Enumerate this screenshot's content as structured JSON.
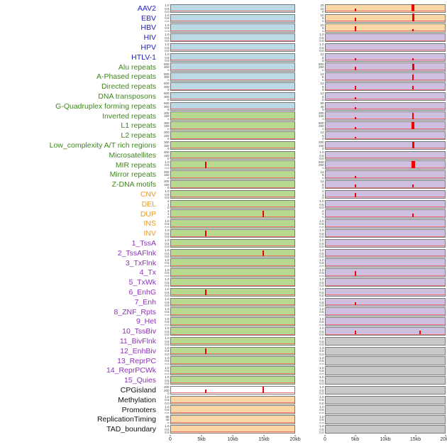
{
  "chart_data": {
    "type": "line",
    "title": "",
    "description": "Two-column genomic feature track figure: 44 feature tracks (rows) around two loci; red signal spikes near 5kb and 15kb on a 0-20kb axis",
    "x_axis": {
      "ticks": [
        "0",
        "5kb",
        "10kb",
        "15kb",
        "20kb"
      ],
      "fractions": [
        0,
        0.25,
        0.5,
        0.75,
        1
      ],
      "range_kb": [
        0,
        20
      ]
    },
    "group_colors": {
      "virus": "#2020cc",
      "repeat": "#3f871b",
      "sv": "#ee9b1f",
      "chromhmm": "#9030bd",
      "other": "#111111"
    },
    "panel_colors": {
      "blue": "#bcd9e6",
      "green": "#b8da90",
      "orange": "#fcd7a6",
      "purple": "#cfc0e2",
      "gray": "#c9c9c9",
      "white": "#ffffff"
    },
    "signal_color": "#f40000",
    "baseline_color": "#e87272",
    "tick_sets": {
      "u": [
        "1.0",
        "0.5",
        "0.0"
      ],
      "c2": [
        "2",
        "1",
        "0"
      ],
      "c3": [
        "300",
        "150",
        "0"
      ],
      "c6": [
        "600",
        "300",
        "0"
      ],
      "c12": [
        "12",
        "6",
        "0"
      ],
      "c80": [
        "80",
        "40",
        "0"
      ],
      "c500": [
        "500",
        "250",
        "0"
      ],
      "cpg": [
        "400",
        "200",
        "0"
      ],
      "v20": [
        "20",
        "10",
        "0"
      ],
      "v15": [
        "10",
        "5",
        "0"
      ]
    },
    "tracks": [
      {
        "label": "AAV2",
        "group": "virus",
        "lt": "u",
        "rt": "v20",
        "l": {
          "bg": "blue",
          "s": []
        },
        "r": {
          "bg": "orange",
          "s": [
            {
              "kb": 5.0,
              "h": 0.35
            },
            {
              "kb": 14.7,
              "h": 1.0,
              "w": 4
            }
          ]
        }
      },
      {
        "label": "EBV",
        "group": "virus",
        "lt": "u",
        "rt": "v15",
        "l": {
          "bg": "blue",
          "s": []
        },
        "r": {
          "bg": "orange",
          "s": [
            {
              "kb": 5.0,
              "h": 0.5
            },
            {
              "kb": 14.7,
              "h": 1.0,
              "w": 3
            }
          ]
        }
      },
      {
        "label": "HBV",
        "group": "virus",
        "lt": "u",
        "rt": "v15",
        "l": {
          "bg": "blue",
          "s": []
        },
        "r": {
          "bg": "orange",
          "s": [
            {
              "kb": 5.0,
              "h": 0.6
            },
            {
              "kb": 14.7,
              "h": 0.25
            }
          ]
        }
      },
      {
        "label": "HIV",
        "group": "virus",
        "lt": "u",
        "rt": "u",
        "l": {
          "bg": "blue",
          "s": []
        },
        "r": {
          "bg": "purple",
          "s": []
        }
      },
      {
        "label": "HPV",
        "group": "virus",
        "lt": "u",
        "rt": "u",
        "l": {
          "bg": "blue",
          "s": []
        },
        "r": {
          "bg": "purple",
          "s": []
        }
      },
      {
        "label": "HTLV-1",
        "group": "virus",
        "lt": "u",
        "rt": "c12",
        "l": {
          "bg": "blue",
          "s": []
        },
        "r": {
          "bg": "purple",
          "s": [
            {
              "kb": 5.0,
              "h": 0.3
            },
            {
              "kb": 14.7,
              "h": 0.3
            }
          ]
        }
      },
      {
        "label": "Alu repeats",
        "group": "repeat",
        "lt": "c6",
        "rt": "c500",
        "l": {
          "bg": "blue",
          "s": []
        },
        "r": {
          "bg": "purple",
          "s": [
            {
              "kb": 5.0,
              "h": 0.45
            },
            {
              "kb": 14.7,
              "h": 0.85,
              "w": 3
            }
          ]
        }
      },
      {
        "label": "A-Phased repeats",
        "group": "repeat",
        "lt": "c6",
        "rt": "c12",
        "l": {
          "bg": "blue",
          "s": []
        },
        "r": {
          "bg": "purple",
          "s": [
            {
              "kb": 14.7,
              "h": 0.7
            }
          ]
        }
      },
      {
        "label": "Directed repeats",
        "group": "repeat",
        "lt": "c6",
        "rt": "c12",
        "l": {
          "bg": "blue",
          "s": []
        },
        "r": {
          "bg": "purple",
          "s": [
            {
              "kb": 5.0,
              "h": 0.5
            },
            {
              "kb": 14.7,
              "h": 0.5
            }
          ]
        }
      },
      {
        "label": "DNA transposons",
        "group": "repeat",
        "lt": "c6",
        "rt": "c12",
        "l": {
          "bg": "blue",
          "s": []
        },
        "r": {
          "bg": "purple",
          "s": [
            {
              "kb": 5.0,
              "h": 0.3
            }
          ]
        }
      },
      {
        "label": "G-Quadruplex forming repeats",
        "group": "repeat",
        "lt": "c6",
        "rt": "c80",
        "l": {
          "bg": "blue",
          "s": []
        },
        "r": {
          "bg": "purple",
          "s": [
            {
              "kb": 5.0,
              "h": 0.25
            }
          ]
        }
      },
      {
        "label": "Inverted repeats",
        "group": "repeat",
        "lt": "c3",
        "rt": "c3",
        "l": {
          "bg": "green",
          "s": []
        },
        "r": {
          "bg": "purple",
          "s": [
            {
              "kb": 5.0,
              "h": 0.3
            },
            {
              "kb": 14.7,
              "h": 0.85
            }
          ]
        }
      },
      {
        "label": "L1 repeats",
        "group": "repeat",
        "lt": "c3",
        "rt": "c500",
        "l": {
          "bg": "green",
          "s": []
        },
        "r": {
          "bg": "purple",
          "s": [
            {
              "kb": 5.0,
              "h": 0.3
            },
            {
              "kb": 14.7,
              "h": 0.9,
              "w": 4
            }
          ]
        }
      },
      {
        "label": "L2 repeats",
        "group": "repeat",
        "lt": "c3",
        "rt": "c12",
        "l": {
          "bg": "green",
          "s": []
        },
        "r": {
          "bg": "purple",
          "s": [
            {
              "kb": 5.0,
              "h": 0.25
            }
          ]
        }
      },
      {
        "label": "Low_complexity A/T rich regions",
        "group": "repeat",
        "lt": "c3",
        "rt": "c3",
        "l": {
          "bg": "green",
          "s": []
        },
        "r": {
          "bg": "purple",
          "s": [
            {
              "kb": 14.7,
              "h": 0.9,
              "w": 3
            }
          ]
        }
      },
      {
        "label": "Microsatellites",
        "group": "repeat",
        "lt": "c3",
        "rt": "u",
        "l": {
          "bg": "green",
          "s": []
        },
        "r": {
          "bg": "purple",
          "s": []
        }
      },
      {
        "label": "MIR repeats",
        "group": "repeat",
        "lt": "u",
        "rt": "c500",
        "l": {
          "bg": "green",
          "s": [
            {
              "kb": 5.6,
              "h": 0.85
            }
          ]
        },
        "r": {
          "bg": "purple",
          "s": [
            {
              "kb": 14.7,
              "h": 0.9,
              "w": 5
            }
          ]
        }
      },
      {
        "label": "Mirror repeats",
        "group": "repeat",
        "lt": "c3",
        "rt": "c12",
        "l": {
          "bg": "green",
          "s": []
        },
        "r": {
          "bg": "purple",
          "s": [
            {
              "kb": 5.0,
              "h": 0.25
            }
          ]
        }
      },
      {
        "label": "Z-DNA motifs",
        "group": "repeat",
        "lt": "c3",
        "rt": "c12",
        "l": {
          "bg": "green",
          "s": []
        },
        "r": {
          "bg": "purple",
          "s": [
            {
              "kb": 5.0,
              "h": 0.45
            },
            {
              "kb": 14.7,
              "h": 0.4
            }
          ]
        }
      },
      {
        "label": "CNV",
        "group": "sv",
        "lt": "u",
        "rt": "c2",
        "l": {
          "bg": "green",
          "s": []
        },
        "r": {
          "bg": "purple",
          "s": [
            {
              "kb": 5.0,
              "h": 0.55
            }
          ]
        }
      },
      {
        "label": "DEL",
        "group": "sv",
        "lt": "c2",
        "rt": "u",
        "l": {
          "bg": "green",
          "s": []
        },
        "r": {
          "bg": "purple",
          "s": []
        }
      },
      {
        "label": "DUP",
        "group": "sv",
        "lt": "c2",
        "rt": "c2",
        "l": {
          "bg": "green",
          "s": [
            {
              "kb": 14.9,
              "h": 0.8
            }
          ]
        },
        "r": {
          "bg": "purple",
          "s": [
            {
              "kb": 14.7,
              "h": 0.45
            }
          ]
        }
      },
      {
        "label": "INS",
        "group": "sv",
        "lt": "u",
        "rt": "u",
        "l": {
          "bg": "green",
          "s": []
        },
        "r": {
          "bg": "purple",
          "s": []
        }
      },
      {
        "label": "INV",
        "group": "sv",
        "lt": "u",
        "rt": "u",
        "l": {
          "bg": "green",
          "s": [
            {
              "kb": 5.6,
              "h": 0.8
            }
          ]
        },
        "r": {
          "bg": "purple",
          "s": []
        }
      },
      {
        "label": "1_TssA",
        "group": "chromhmm",
        "lt": "u",
        "rt": "u",
        "l": {
          "bg": "green",
          "s": []
        },
        "r": {
          "bg": "purple",
          "s": []
        }
      },
      {
        "label": "2_TssAFlnk",
        "group": "chromhmm",
        "lt": "u",
        "rt": "u",
        "l": {
          "bg": "green",
          "s": [
            {
              "kb": 14.9,
              "h": 0.8
            }
          ]
        },
        "r": {
          "bg": "purple",
          "s": []
        }
      },
      {
        "label": "3_TxFlnk",
        "group": "chromhmm",
        "lt": "u",
        "rt": "u",
        "l": {
          "bg": "green",
          "s": []
        },
        "r": {
          "bg": "purple",
          "s": []
        }
      },
      {
        "label": "4_Tx",
        "group": "chromhmm",
        "lt": "u",
        "rt": "u",
        "l": {
          "bg": "green",
          "s": []
        },
        "r": {
          "bg": "purple",
          "s": [
            {
              "kb": 5.0,
              "h": 0.6
            }
          ]
        }
      },
      {
        "label": "5_TxWk",
        "group": "chromhmm",
        "lt": "u",
        "rt": "u",
        "l": {
          "bg": "green",
          "s": []
        },
        "r": {
          "bg": "purple",
          "s": []
        }
      },
      {
        "label": "6_EnhG",
        "group": "chromhmm",
        "lt": "u",
        "rt": "u",
        "l": {
          "bg": "green",
          "s": [
            {
              "kb": 5.6,
              "h": 0.8
            }
          ]
        },
        "r": {
          "bg": "purple",
          "s": []
        }
      },
      {
        "label": "7_Enh",
        "group": "chromhmm",
        "lt": "u",
        "rt": "u",
        "l": {
          "bg": "green",
          "s": []
        },
        "r": {
          "bg": "purple",
          "s": [
            {
              "kb": 5.0,
              "h": 0.35
            }
          ]
        }
      },
      {
        "label": "8_ZNF_Rpts",
        "group": "chromhmm",
        "lt": "u",
        "rt": "u",
        "l": {
          "bg": "green",
          "s": []
        },
        "r": {
          "bg": "purple",
          "s": []
        }
      },
      {
        "label": "9_Het",
        "group": "chromhmm",
        "lt": "u",
        "rt": "u",
        "l": {
          "bg": "green",
          "s": []
        },
        "r": {
          "bg": "purple",
          "s": []
        }
      },
      {
        "label": "10_TssBiv",
        "group": "chromhmm",
        "lt": "u",
        "rt": "u",
        "l": {
          "bg": "green",
          "s": []
        },
        "r": {
          "bg": "purple",
          "s": [
            {
              "kb": 5.0,
              "h": 0.55
            },
            {
              "kb": 15.8,
              "h": 0.5
            }
          ]
        }
      },
      {
        "label": "11_BivFlnk",
        "group": "chromhmm",
        "lt": "u",
        "rt": "u",
        "l": {
          "bg": "green",
          "s": []
        },
        "r": {
          "bg": "gray",
          "s": []
        }
      },
      {
        "label": "12_EnhBiv",
        "group": "chromhmm",
        "lt": "u",
        "rt": "u",
        "l": {
          "bg": "green",
          "s": [
            {
              "kb": 5.6,
              "h": 0.75
            }
          ]
        },
        "r": {
          "bg": "gray",
          "s": []
        }
      },
      {
        "label": "13_ReprPC",
        "group": "chromhmm",
        "lt": "u",
        "rt": "u",
        "l": {
          "bg": "green",
          "s": []
        },
        "r": {
          "bg": "gray",
          "s": []
        }
      },
      {
        "label": "14_ReprPCWk",
        "group": "chromhmm",
        "lt": "u",
        "rt": "u",
        "l": {
          "bg": "green",
          "s": []
        },
        "r": {
          "bg": "gray",
          "s": []
        }
      },
      {
        "label": "15_Quies",
        "group": "chromhmm",
        "lt": "u",
        "rt": "u",
        "l": {
          "bg": "green",
          "s": []
        },
        "r": {
          "bg": "gray",
          "s": []
        }
      },
      {
        "label": "CPGisland",
        "group": "other",
        "lt": "cpg",
        "rt": "u",
        "l": {
          "bg": "white",
          "s": [
            {
              "kb": 5.6,
              "h": 0.5
            },
            {
              "kb": 14.9,
              "h": 0.85
            }
          ]
        },
        "r": {
          "bg": "gray",
          "s": []
        }
      },
      {
        "label": "Methylation",
        "group": "other",
        "lt": "u",
        "rt": "u",
        "l": {
          "bg": "orange",
          "s": []
        },
        "r": {
          "bg": "gray",
          "s": []
        }
      },
      {
        "label": "Promoters",
        "group": "other",
        "lt": "u",
        "rt": "u",
        "l": {
          "bg": "orange",
          "s": []
        },
        "r": {
          "bg": "gray",
          "s": []
        }
      },
      {
        "label": "ReplicationTiming",
        "group": "other",
        "lt": "c80",
        "rt": "u",
        "l": {
          "bg": "orange",
          "s": []
        },
        "r": {
          "bg": "gray",
          "s": []
        }
      },
      {
        "label": "TAD_boundary",
        "group": "other",
        "lt": "u",
        "rt": "u",
        "l": {
          "bg": "orange",
          "s": []
        },
        "r": {
          "bg": "gray",
          "s": []
        }
      }
    ]
  }
}
